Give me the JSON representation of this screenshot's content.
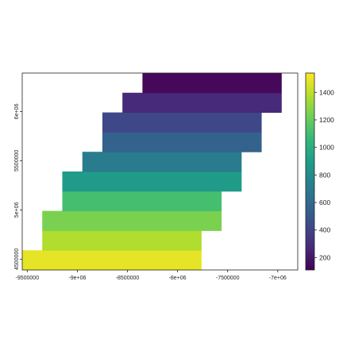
{
  "chart_data": {
    "type": "heatmap",
    "title": "",
    "xlabel": "",
    "ylabel": "",
    "xlim": [
      -9550000,
      -6800000
    ],
    "ylim": [
      4390000,
      6390000
    ],
    "x_tick_values": [
      -9500000,
      -9000000,
      -8500000,
      -8000000,
      -7500000,
      -7000000
    ],
    "x_tick_labels": [
      "-9500000",
      "-9e+06",
      "-8500000",
      "-8e+06",
      "-7500000",
      "-7e+06"
    ],
    "y_tick_values": [
      4500000,
      5000000,
      5500000,
      6000000
    ],
    "y_tick_labels": [
      "4500000",
      "5e+06",
      "5500000",
      "6e+06"
    ],
    "colorbar": {
      "min": 110,
      "max": 1540,
      "tick_values": [
        200,
        400,
        600,
        800,
        1000,
        1200,
        1400
      ],
      "tick_labels": [
        "200",
        "400",
        "600",
        "800",
        "1000",
        "1200",
        "1400"
      ],
      "colormap": [
        "#440154",
        "#482878",
        "#3e4a89",
        "#31688e",
        "#26828e",
        "#1f9e89",
        "#35b779",
        "#6ece58",
        "#b5de2b",
        "#fde725"
      ]
    },
    "rows": [
      {
        "x0": -9550000,
        "x1": -7760000,
        "y0": 4390000,
        "y1": 4590000,
        "value": 1490
      },
      {
        "x0": -9350000,
        "x1": -7760000,
        "y0": 4590000,
        "y1": 4790000,
        "value": 1370
      },
      {
        "x0": -9350000,
        "x1": -7560000,
        "y0": 4790000,
        "y1": 4990000,
        "value": 1250
      },
      {
        "x0": -9150000,
        "x1": -7560000,
        "y0": 4990000,
        "y1": 5190000,
        "value": 1110
      },
      {
        "x0": -9150000,
        "x1": -7360000,
        "y0": 5190000,
        "y1": 5390000,
        "value": 890
      },
      {
        "x0": -8950000,
        "x1": -7360000,
        "y0": 5390000,
        "y1": 5590000,
        "value": 710
      },
      {
        "x0": -8750000,
        "x1": -7160000,
        "y0": 5590000,
        "y1": 5790000,
        "value": 560
      },
      {
        "x0": -8750000,
        "x1": -7160000,
        "y0": 5790000,
        "y1": 5990000,
        "value": 420
      },
      {
        "x0": -8550000,
        "x1": -6960000,
        "y0": 5990000,
        "y1": 6190000,
        "value": 280
      },
      {
        "x0": -8350000,
        "x1": -6960000,
        "y0": 6190000,
        "y1": 6390000,
        "value": 140
      }
    ]
  }
}
